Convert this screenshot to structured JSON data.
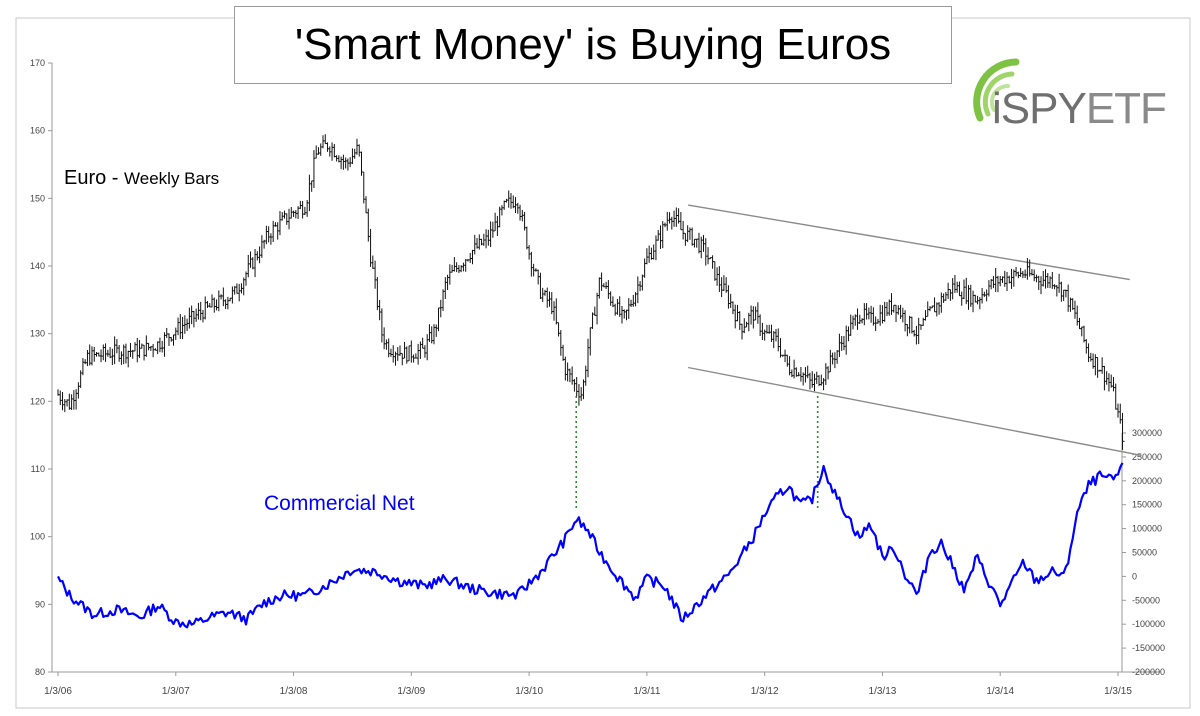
{
  "title": "'Smart Money' is Buying Euros",
  "logo": {
    "text_prefix": "i",
    "text_spy": "SPY",
    "text_etf": "ETF",
    "accent": "#7dc242"
  },
  "chart_data": {
    "type": "line",
    "title": "'Smart Money' is Buying Euros",
    "x_ticks": [
      "1/3/06",
      "1/3/07",
      "1/3/08",
      "1/3/09",
      "1/3/10",
      "1/3/11",
      "1/3/12",
      "1/3/13",
      "1/3/14",
      "1/3/15"
    ],
    "x_range": [
      2006.0,
      2015.0
    ],
    "y_left": {
      "ticks": [
        "80",
        "90",
        "100",
        "110",
        "120",
        "130",
        "140",
        "150",
        "160",
        "170"
      ],
      "range": [
        80,
        170
      ]
    },
    "y_right": {
      "ticks": [
        "-200000",
        "-150000",
        "-100000",
        "-50000",
        "0",
        "50000",
        "100000",
        "150000",
        "200000",
        "250000",
        "300000"
      ],
      "range": [
        -200000,
        300000
      ]
    },
    "grid": false,
    "series": [
      {
        "name": "Euro - Weekly Bars",
        "label_main": "Euro",
        "label_dash": " - ",
        "label_sub": "Weekly Bars",
        "axis": "left",
        "color": "#000000",
        "style": "ohlc-weekly",
        "x": [
          2006.0,
          2006.1,
          2006.25,
          2006.4,
          2006.55,
          2006.7,
          2006.85,
          2007.0,
          2007.2,
          2007.35,
          2007.5,
          2007.65,
          2007.8,
          2008.0,
          2008.1,
          2008.2,
          2008.3,
          2008.45,
          2008.55,
          2008.65,
          2008.75,
          2008.8,
          2008.95,
          2009.1,
          2009.2,
          2009.3,
          2009.4,
          2009.5,
          2009.65,
          2009.8,
          2009.9,
          2010.0,
          2010.1,
          2010.2,
          2010.3,
          2010.4,
          2010.45,
          2010.5,
          2010.6,
          2010.7,
          2010.8,
          2010.9,
          2011.0,
          2011.1,
          2011.2,
          2011.3,
          2011.4,
          2011.5,
          2011.6,
          2011.7,
          2011.8,
          2011.9,
          2012.0,
          2012.1,
          2012.2,
          2012.3,
          2012.4,
          2012.5,
          2012.6,
          2012.7,
          2012.8,
          2012.9,
          2013.0,
          2013.1,
          2013.2,
          2013.3,
          2013.4,
          2013.5,
          2013.6,
          2013.7,
          2013.8,
          2013.9,
          2014.0,
          2014.2,
          2014.35,
          2014.45,
          2014.55,
          2014.65,
          2014.75,
          2014.85,
          2014.95,
          2015.05
        ],
        "values": [
          121,
          119.5,
          126.5,
          127,
          127.5,
          127.5,
          128.5,
          130.5,
          133,
          134.5,
          136,
          140.5,
          145,
          148,
          149,
          157,
          158,
          155,
          157.5,
          142,
          130,
          128,
          127,
          127.5,
          130.5,
          138,
          140,
          142,
          144,
          149,
          150,
          142,
          136,
          134,
          125,
          122,
          121,
          128,
          138,
          135,
          132,
          136,
          141,
          144,
          148,
          145,
          144,
          142,
          138,
          135,
          131,
          133,
          130,
          129,
          125,
          124.5,
          122.5,
          124,
          127,
          130,
          133,
          132,
          133,
          134.5,
          132,
          130,
          133,
          135,
          137,
          136,
          135,
          137,
          138,
          139,
          138,
          138,
          136,
          132,
          127,
          125,
          122,
          114
        ]
      },
      {
        "name": "Commercial Net",
        "axis": "right",
        "color": "#0000ff",
        "x": [
          2006.0,
          2006.1,
          2006.3,
          2006.5,
          2006.7,
          2006.85,
          2007.0,
          2007.15,
          2007.3,
          2007.45,
          2007.6,
          2007.75,
          2007.9,
          2008.1,
          2008.3,
          2008.5,
          2008.7,
          2008.9,
          2009.1,
          2009.3,
          2009.5,
          2009.7,
          2009.9,
          2010.1,
          2010.3,
          2010.4,
          2010.5,
          2010.6,
          2010.75,
          2010.9,
          2011.0,
          2011.15,
          2011.3,
          2011.5,
          2011.7,
          2011.9,
          2012.0,
          2012.1,
          2012.2,
          2012.3,
          2012.4,
          2012.5,
          2012.6,
          2012.7,
          2012.8,
          2012.9,
          2013.0,
          2013.1,
          2013.2,
          2013.3,
          2013.4,
          2013.5,
          2013.6,
          2013.7,
          2013.8,
          2013.9,
          2014.0,
          2014.2,
          2014.3,
          2014.45,
          2014.55,
          2014.65,
          2014.75,
          2014.85,
          2014.95,
          2015.05
        ],
        "values": [
          -5000,
          -40000,
          -80000,
          -70000,
          -85000,
          -60000,
          -95000,
          -100000,
          -85000,
          -75000,
          -90000,
          -55000,
          -40000,
          -40000,
          -15000,
          15000,
          10000,
          -10000,
          -20000,
          -5000,
          -25000,
          -35000,
          -40000,
          10000,
          75000,
          120000,
          95000,
          50000,
          0,
          -45000,
          -5000,
          -20000,
          -90000,
          -40000,
          5000,
          80000,
          130000,
          165000,
          190000,
          150000,
          160000,
          230000,
          170000,
          130000,
          80000,
          110000,
          40000,
          60000,
          0,
          -40000,
          50000,
          70000,
          20000,
          -30000,
          40000,
          -10000,
          -60000,
          30000,
          -10000,
          10000,
          0,
          130000,
          190000,
          210000,
          200000,
          230000
        ]
      }
    ],
    "annotations": [
      {
        "type": "trend_line",
        "from": [
          2011.35,
          149
        ],
        "to": [
          2015.1,
          138
        ]
      },
      {
        "type": "trend_line",
        "from": [
          2011.35,
          125
        ],
        "to": [
          2015.2,
          112
        ]
      },
      {
        "type": "vertical_dotted",
        "x": 2010.4,
        "color": "#2e8b2e"
      },
      {
        "type": "vertical_dotted",
        "x": 2012.45,
        "color": "#2e8b2e"
      }
    ]
  }
}
